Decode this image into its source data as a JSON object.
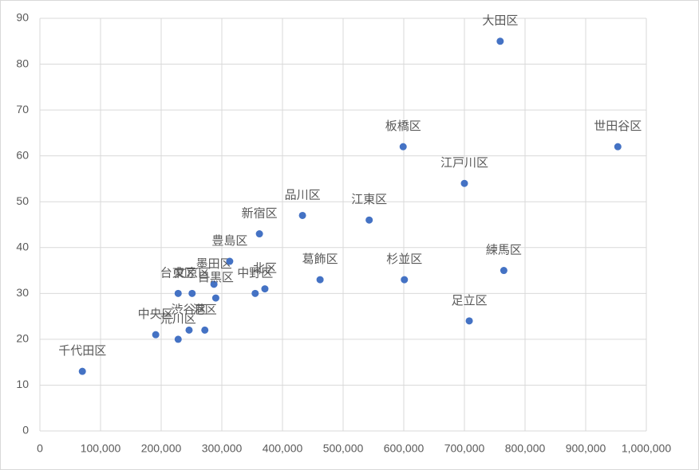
{
  "chart_data": {
    "type": "scatter",
    "labels": [
      "千代田区",
      "中央区",
      "荒川区",
      "渋谷区",
      "港区",
      "台東区",
      "文京区",
      "墨田区",
      "目黒区",
      "中野区",
      "北区",
      "豊島区",
      "新宿区",
      "品川区",
      "江東区",
      "葛飾区",
      "杉並区",
      "板橋区",
      "江戸川区",
      "大田区",
      "世田谷区",
      "練馬区",
      "足立区"
    ],
    "x": [
      70000,
      191000,
      228000,
      246000,
      272000,
      228000,
      251000,
      287000,
      290000,
      355000,
      371000,
      313000,
      362000,
      433000,
      543000,
      462000,
      601000,
      599000,
      700000,
      759000,
      953000,
      765000,
      708000
    ],
    "y": [
      13,
      21,
      20,
      22,
      22,
      30,
      30,
      32,
      29,
      30,
      31,
      37,
      43,
      47,
      46,
      33,
      33,
      62,
      54,
      85,
      62,
      35,
      24
    ],
    "color": "#4472c4",
    "xlim": [
      0,
      1000000
    ],
    "xticks": [
      0,
      {
        "value": 100000,
        "label": "100,000"
      },
      {
        "value": 200000,
        "label": "200,000"
      },
      {
        "value": 300000,
        "label": "300,000"
      },
      {
        "value": 400000,
        "label": "400,000"
      },
      {
        "value": 500000,
        "label": "500,000"
      },
      {
        "value": 600000,
        "label": "600,000"
      },
      {
        "value": 700000,
        "label": "700,000"
      },
      {
        "value": 800000,
        "label": "800,000"
      },
      {
        "value": 900000,
        "label": "900,000"
      },
      {
        "value": 1000000,
        "label": "1,000,000"
      }
    ],
    "ylim": [
      0,
      90
    ],
    "yticks": [
      0,
      10,
      20,
      30,
      40,
      50,
      60,
      70,
      80,
      90
    ],
    "grid": true
  }
}
